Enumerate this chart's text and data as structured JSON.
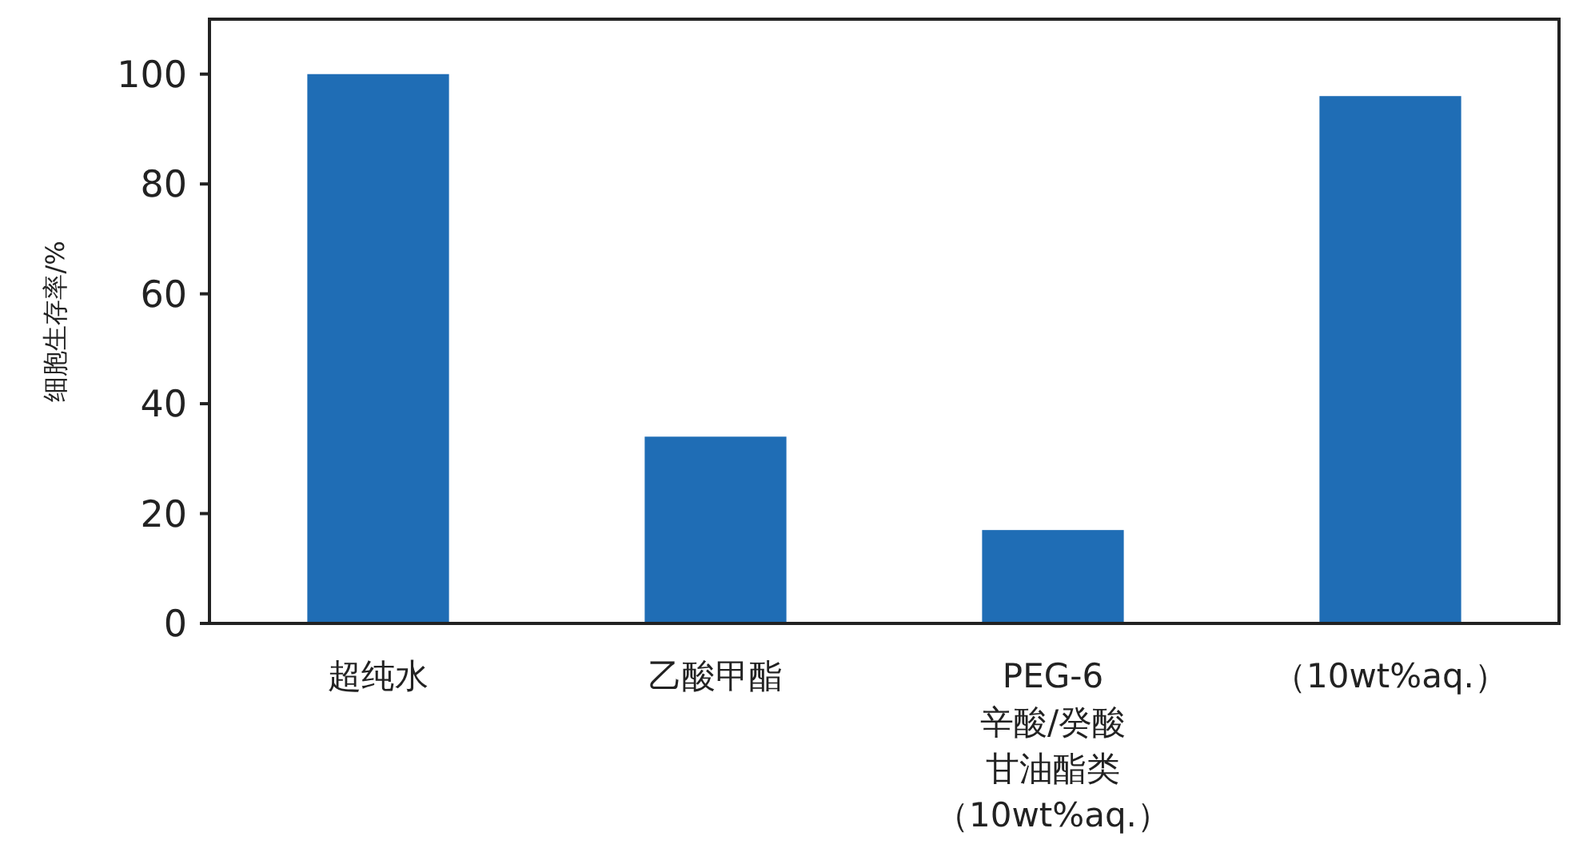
{
  "chart_data": {
    "type": "bar",
    "ylabel": "细胞生存率/%",
    "categories": [
      "超纯水",
      "乙酸甲酯",
      "PEG-6\n辛酸/癸酸甘油酯类（10wt%aq.）",
      "（10wt%aq.）"
    ],
    "values": [
      100,
      34,
      17,
      96
    ],
    "color": "#1f6db5",
    "ylim": [
      0,
      110
    ],
    "yticks": [
      0,
      20,
      40,
      60,
      80,
      100
    ],
    "grid": false
  }
}
